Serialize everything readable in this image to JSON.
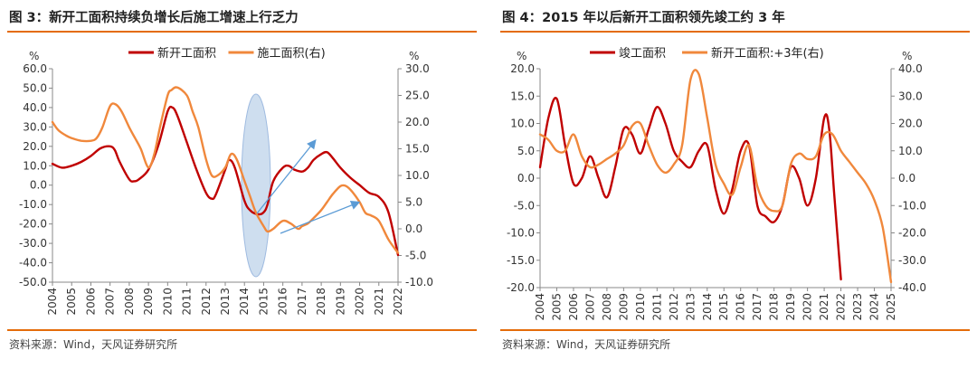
{
  "colors": {
    "red": "#c00000",
    "orange": "#f0883c",
    "accent_rule": "#e46c0a",
    "ellipse_fill": "#bdd3ea",
    "arrow": "#5b9bd5"
  },
  "panels": [
    {
      "title": "图 3：新开工面积持续负增长后施工增速上行乏力",
      "source": "资料来源：Wind，天风证券研究所"
    },
    {
      "title": "图 4：2015 年以后新开工面积领先竣工约 3 年",
      "source": "资料来源：Wind，天风证券研究所"
    }
  ],
  "chart_data": [
    {
      "type": "line",
      "left_unit": "%",
      "right_unit": "%",
      "ylim_left": [
        -50,
        60
      ],
      "ylim_right": [
        -10,
        30
      ],
      "left_ticks": [
        "60.0",
        "50.0",
        "40.0",
        "30.0",
        "20.0",
        "10.0",
        "0.0",
        "-10.0",
        "-20.0",
        "-30.0",
        "-40.0",
        "-50.0"
      ],
      "right_ticks": [
        "30.0",
        "25.0",
        "20.0",
        "15.0",
        "10.0",
        "5.0",
        "0.0",
        "-5.0",
        "-10.0"
      ],
      "xlim": [
        2004,
        2022
      ],
      "categories": [
        "2004",
        "2005",
        "2006",
        "2007",
        "2008",
        "2009",
        "2010",
        "2011",
        "2012",
        "2013",
        "2014",
        "2015",
        "2016",
        "2017",
        "2018",
        "2019",
        "2020",
        "2021",
        "2022"
      ],
      "legend_position": "top-center",
      "annotations": [
        "ellipse-highlight-2014-2015",
        "arrow-up-red",
        "arrow-up-orange"
      ],
      "series": [
        {
          "name": "新开工面积",
          "axis": "left",
          "color": "#c00000",
          "x": [
            2004,
            2004.5,
            2005,
            2005.5,
            2006,
            2006.5,
            2007,
            2007.25,
            2007.5,
            2008,
            2008.25,
            2008.5,
            2009,
            2009.5,
            2010,
            2010.25,
            2010.5,
            2011,
            2011.5,
            2012,
            2012.3,
            2012.5,
            2013,
            2013.2,
            2013.5,
            2014,
            2014.3,
            2014.7,
            2015,
            2015.2,
            2015.5,
            2016,
            2016.3,
            2016.6,
            2017,
            2017.3,
            2017.6,
            2018,
            2018.3,
            2018.6,
            2019,
            2019.5,
            2020,
            2020.5,
            2021,
            2021.5,
            2022
          ],
          "values": [
            11,
            9,
            10,
            12,
            15,
            19,
            20,
            18,
            12,
            3,
            2,
            3,
            8,
            20,
            38,
            40,
            36,
            22,
            8,
            -4,
            -7,
            -5,
            8,
            13,
            9,
            -8,
            -13,
            -15,
            -14,
            -10,
            2,
            9,
            10,
            8,
            7,
            9,
            13,
            16,
            17,
            14,
            9,
            4,
            0,
            -4,
            -6,
            -14,
            -36
          ]
        },
        {
          "name": "施工面积(右)",
          "axis": "right",
          "color": "#f0883c",
          "x": [
            2004,
            2004.3,
            2004.7,
            2005,
            2005.5,
            2006,
            2006.3,
            2006.6,
            2007,
            2007.3,
            2007.6,
            2008,
            2008.3,
            2008.6,
            2009,
            2009.3,
            2009.6,
            2010,
            2010.2,
            2010.5,
            2011,
            2011.3,
            2011.6,
            2012,
            2012.3,
            2012.6,
            2013,
            2013.3,
            2013.6,
            2014,
            2014.3,
            2014.6,
            2015,
            2015.2,
            2015.5,
            2016,
            2016.4,
            2016.8,
            2017,
            2017.3,
            2017.6,
            2018,
            2018.3,
            2018.6,
            2019,
            2019.3,
            2019.6,
            2020,
            2020.3,
            2020.6,
            2021,
            2021.5,
            2022
          ],
          "values": [
            20,
            18.5,
            17.5,
            17,
            16.5,
            16.5,
            17,
            19,
            23,
            23.3,
            22,
            19,
            17,
            15,
            11.5,
            14,
            19,
            25,
            26,
            26.5,
            25,
            22,
            19,
            13,
            10,
            10,
            11.5,
            14,
            13,
            9,
            6,
            3,
            0.5,
            -0.5,
            0,
            1.5,
            1,
            0,
            0.5,
            1,
            2,
            3.5,
            5,
            6.5,
            8,
            8,
            7,
            5,
            3,
            2.5,
            1.5,
            -2,
            -4.5
          ]
        }
      ]
    },
    {
      "type": "line",
      "left_unit": "%",
      "right_unit": "%",
      "ylim_left": [
        -20,
        20
      ],
      "ylim_right": [
        -40,
        40
      ],
      "left_ticks": [
        "20.0",
        "15.0",
        "10.0",
        "5.0",
        "0.0",
        "-5.0",
        "-10.0",
        "-15.0",
        "-20.0"
      ],
      "right_ticks": [
        "40.0",
        "30.0",
        "20.0",
        "10.0",
        "0.0",
        "-10.0",
        "-20.0",
        "-30.0",
        "-40.0"
      ],
      "xlim": [
        2004,
        2025
      ],
      "categories": [
        "2004",
        "2005",
        "2006",
        "2007",
        "2008",
        "2009",
        "2010",
        "2011",
        "2012",
        "2013",
        "2014",
        "2015",
        "2016",
        "2017",
        "2018",
        "2019",
        "2020",
        "2021",
        "2022",
        "2023",
        "2024",
        "2025"
      ],
      "legend_position": "top-center",
      "series": [
        {
          "name": "竣工面积",
          "axis": "left",
          "color": "#c00000",
          "x": [
            2004,
            2004.5,
            2005,
            2005.5,
            2006,
            2006.5,
            2007,
            2007.5,
            2008,
            2008.5,
            2009,
            2009.5,
            2010,
            2010.5,
            2011,
            2011.5,
            2012,
            2012.5,
            2013,
            2013.5,
            2014,
            2014.5,
            2015,
            2015.5,
            2016,
            2016.5,
            2017,
            2017.5,
            2018,
            2018.5,
            2019,
            2019.5,
            2020,
            2020.5,
            2021,
            2021.3,
            2021.6,
            2022
          ],
          "values": [
            2,
            11,
            14.5,
            6,
            -1,
            0,
            4,
            0,
            -3.5,
            2,
            9,
            8,
            4.5,
            9,
            13,
            10,
            5,
            3,
            2,
            5,
            6,
            -2,
            -6.5,
            -2,
            5,
            6,
            -5,
            -7,
            -8,
            -5,
            2,
            0,
            -5,
            0,
            11,
            9,
            -3,
            -18.5
          ]
        },
        {
          "name": "新开工面积:+3年(右)",
          "axis": "right",
          "color": "#f0883c",
          "x": [
            2004,
            2004.5,
            2005,
            2005.5,
            2006,
            2006.5,
            2007,
            2007.5,
            2008,
            2008.5,
            2009,
            2009.5,
            2010,
            2010.5,
            2011,
            2011.5,
            2012,
            2012.5,
            2013,
            2013.5,
            2014,
            2014.5,
            2015,
            2015.5,
            2016,
            2016.5,
            2017,
            2017.5,
            2018,
            2018.5,
            2019,
            2019.5,
            2020,
            2020.5,
            2021,
            2021.5,
            2022,
            2022.5,
            2023,
            2023.5,
            2024,
            2024.5,
            2025
          ],
          "values": [
            16,
            14,
            10,
            10,
            16,
            8,
            4,
            5,
            7,
            9,
            12,
            19,
            20,
            12,
            5,
            2,
            5,
            12,
            36,
            38,
            22,
            5,
            -2,
            -6,
            4,
            12,
            -3,
            -10,
            -12,
            -10,
            5,
            9,
            7,
            8,
            16,
            16,
            10,
            6,
            2,
            -2,
            -8,
            -18,
            -38
          ]
        }
      ]
    }
  ]
}
